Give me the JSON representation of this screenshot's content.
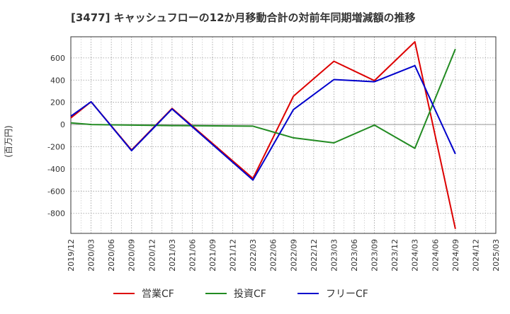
{
  "chart_data": {
    "type": "line",
    "title": "[3477]  キャッシュフローの12か月移動合計の対前年同期増減額の推移",
    "ylabel": "(百万円)",
    "xlabel": "",
    "ylim": [
      -980,
      790
    ],
    "yticks": [
      -800,
      -600,
      -400,
      -200,
      0,
      200,
      400,
      600
    ],
    "xticks": [
      "2019/12",
      "2020/03",
      "2020/06",
      "2020/09",
      "2020/12",
      "2021/03",
      "2021/06",
      "2021/09",
      "2021/12",
      "2022/03",
      "2022/06",
      "2022/09",
      "2022/12",
      "2023/03",
      "2023/06",
      "2023/09",
      "2023/12",
      "2024/03",
      "2024/06",
      "2024/09",
      "2024/12",
      "2025/03"
    ],
    "grid": true,
    "legend_position": "bottom",
    "series": [
      {
        "name": "営業CF",
        "color": "#dd0000",
        "points": [
          [
            "2019/12",
            60
          ],
          [
            "2020/03",
            205
          ],
          [
            "2020/09",
            -230
          ],
          [
            "2021/03",
            145
          ],
          [
            "2022/03",
            -485
          ],
          [
            "2022/09",
            255
          ],
          [
            "2023/03",
            570
          ],
          [
            "2023/09",
            395
          ],
          [
            "2024/03",
            745
          ],
          [
            "2024/09",
            -940
          ]
        ]
      },
      {
        "name": "投資CF",
        "color": "#228b22",
        "points": [
          [
            "2019/12",
            15
          ],
          [
            "2020/03",
            0
          ],
          [
            "2020/09",
            -5
          ],
          [
            "2021/03",
            -10
          ],
          [
            "2022/03",
            -15
          ],
          [
            "2022/09",
            -120
          ],
          [
            "2023/03",
            -165
          ],
          [
            "2023/09",
            -5
          ],
          [
            "2024/03",
            -215
          ],
          [
            "2024/09",
            680
          ]
        ]
      },
      {
        "name": "フリーCF",
        "color": "#0000cc",
        "points": [
          [
            "2019/12",
            75
          ],
          [
            "2020/03",
            205
          ],
          [
            "2020/09",
            -235
          ],
          [
            "2021/03",
            140
          ],
          [
            "2022/03",
            -500
          ],
          [
            "2022/09",
            135
          ],
          [
            "2023/03",
            405
          ],
          [
            "2023/09",
            385
          ],
          [
            "2024/03",
            530
          ],
          [
            "2024/09",
            -265
          ]
        ]
      }
    ]
  }
}
